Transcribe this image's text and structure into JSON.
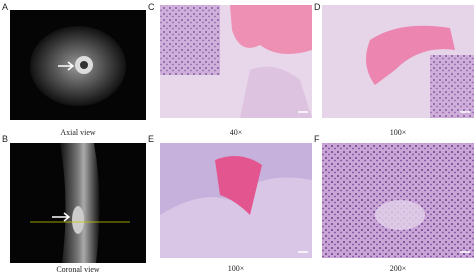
{
  "panels": [
    {
      "letter": "A",
      "caption": "Axial view"
    },
    {
      "letter": "B",
      "caption": "Coronal view"
    },
    {
      "letter": "C",
      "caption": "40×"
    },
    {
      "letter": "D",
      "caption": "100×"
    },
    {
      "letter": "E",
      "caption": "100×"
    },
    {
      "letter": "F",
      "caption": "200×"
    }
  ]
}
